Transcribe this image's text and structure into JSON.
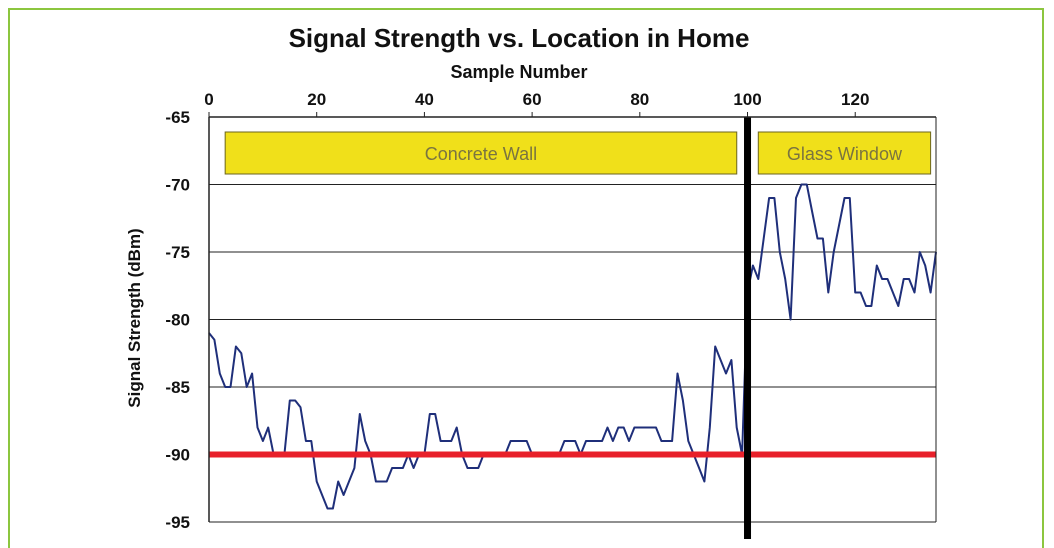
{
  "chart_data": {
    "type": "line",
    "title": "Signal Strength vs. Location in Home",
    "xlabel": "Sample Number",
    "ylabel": "Signal Strength (dBm)",
    "x_axis_position": "top",
    "xlim": [
      0,
      135
    ],
    "ylim": [
      -95,
      -65
    ],
    "x_ticks": [
      "0",
      "20",
      "40",
      "60",
      "80",
      "100",
      "120"
    ],
    "x_tick_values": [
      0,
      20,
      40,
      60,
      80,
      100,
      120
    ],
    "y_ticks": [
      "-65",
      "-70",
      "-75",
      "-80",
      "-85",
      "-90",
      "-95"
    ],
    "y_tick_values": [
      -65,
      -70,
      -75,
      -80,
      -85,
      -90,
      -95
    ],
    "grid": "horizontal",
    "series": [
      {
        "color": "#1f2f7a",
        "x": [
          0,
          1,
          2,
          3,
          4,
          5,
          6,
          7,
          8,
          9,
          10,
          11,
          12,
          13,
          14,
          15,
          16,
          17,
          18,
          19,
          20,
          21,
          22,
          23,
          24,
          25,
          26,
          27,
          28,
          29,
          30,
          31,
          32,
          33,
          34,
          35,
          36,
          37,
          38,
          39,
          40,
          41,
          42,
          43,
          44,
          45,
          46,
          47,
          48,
          49,
          50,
          51,
          52,
          53,
          54,
          55,
          56,
          57,
          58,
          59,
          60,
          61,
          62,
          63,
          64,
          65,
          66,
          67,
          68,
          69,
          70,
          71,
          72,
          73,
          74,
          75,
          76,
          77,
          78,
          79,
          80,
          81,
          82,
          83,
          84,
          85,
          86,
          87,
          88,
          89,
          90,
          91,
          92,
          93,
          94,
          95,
          96,
          97,
          98,
          99,
          100,
          101,
          102,
          103,
          104,
          105,
          106,
          107,
          108,
          109,
          110,
          111,
          112,
          113,
          114,
          115,
          116,
          117,
          118,
          119,
          120,
          121,
          122,
          123,
          124,
          125,
          126,
          127,
          128,
          129,
          130,
          131,
          132,
          133,
          134,
          135
        ],
        "values": [
          -81,
          -81.5,
          -84,
          -85,
          -85,
          -82,
          -82.5,
          -85,
          -84,
          -88,
          -89,
          -88,
          -90,
          -90,
          -90,
          -86,
          -86,
          -86.5,
          -89,
          -89,
          -92,
          -93,
          -94,
          -94,
          -92,
          -93,
          -92,
          -91,
          -87,
          -89,
          -90,
          -92,
          -92,
          -92,
          -91,
          -91,
          -91,
          -90,
          -91,
          -90,
          -90,
          -87,
          -87,
          -89,
          -89,
          -89,
          -88,
          -90,
          -91,
          -91,
          -91,
          -90,
          -90,
          -90,
          -90,
          -90,
          -89,
          -89,
          -89,
          -89,
          -90,
          -90,
          -90,
          -90,
          -90,
          -90,
          -89,
          -89,
          -89,
          -90,
          -89,
          -89,
          -89,
          -89,
          -88,
          -89,
          -88,
          -88,
          -89,
          -88,
          -88,
          -88,
          -88,
          -88,
          -89,
          -89,
          -89,
          -84,
          -86,
          -89,
          -90,
          -91,
          -92,
          -88,
          -82,
          -83,
          -84,
          -83,
          -88,
          -90,
          -78,
          -76,
          -77,
          -74,
          -71,
          -71,
          -75,
          -77,
          -80,
          -71,
          -70,
          -70,
          -72,
          -74,
          -74,
          -78,
          -75,
          -73,
          -71,
          -71,
          -78,
          -78,
          -79,
          -79,
          -76,
          -77,
          -77,
          -78,
          -79,
          -77,
          -77,
          -78,
          -75,
          -76,
          -78,
          -75
        ],
        "line_width": 2
      },
      {
        "color": "#e8202a",
        "x": [
          0,
          135
        ],
        "values": [
          -90,
          -90
        ],
        "line_width": 6
      }
    ],
    "vertical_marker": {
      "x": 100,
      "color": "#000000"
    },
    "regions": [
      {
        "label": "Concrete Wall",
        "x_start": 3,
        "x_end": 98,
        "color": "#f0e01a"
      },
      {
        "label": "Glass Window",
        "x_start": 102,
        "x_end": 134,
        "color": "#f0e01a"
      }
    ]
  }
}
